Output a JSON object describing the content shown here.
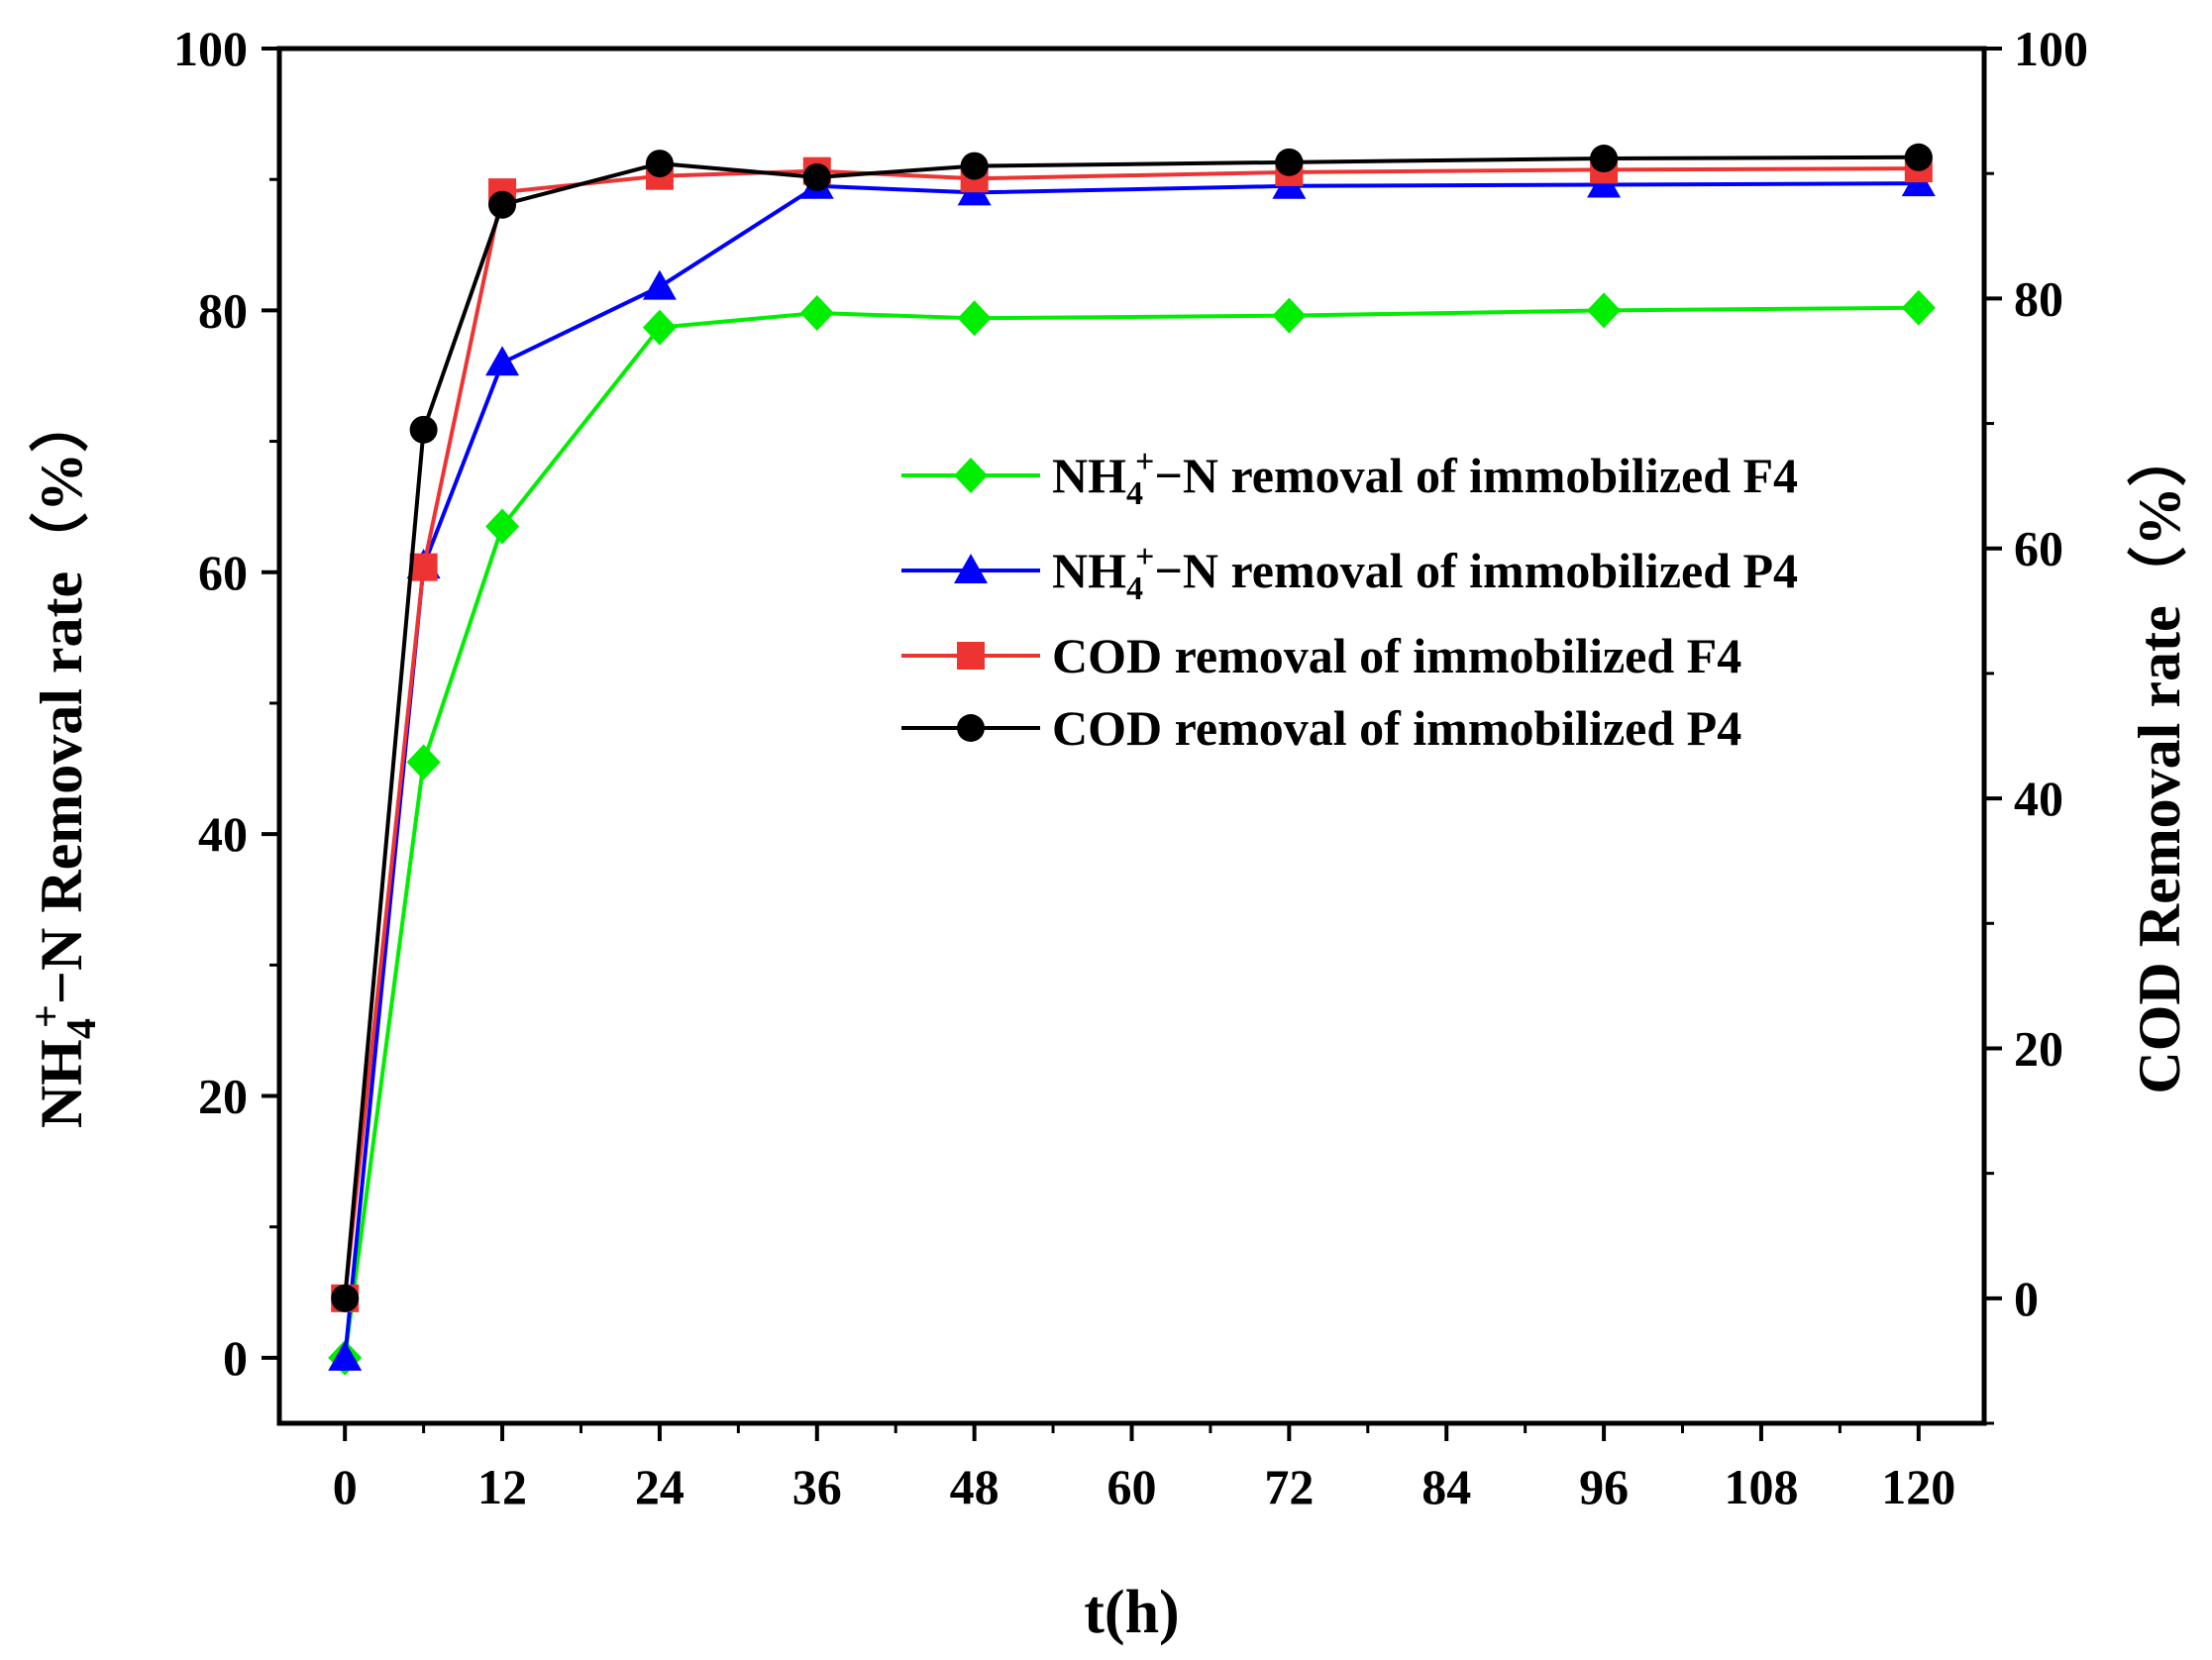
{
  "chart_data": {
    "type": "line",
    "xlabel": "t(h)",
    "ylabel_left": {
      "prefix": "NH",
      "sub": "4",
      "sup": "+",
      "suffix": "−N Removal rate（%）"
    },
    "ylabel_right": "COD Removal rate（%）",
    "xlim": [
      -5,
      125
    ],
    "ylim_left": [
      -5,
      100
    ],
    "ylim_right": [
      -10,
      100
    ],
    "x_ticks": [
      0,
      12,
      24,
      36,
      48,
      60,
      72,
      84,
      96,
      108,
      120
    ],
    "y_ticks_left": [
      0,
      20,
      40,
      60,
      80,
      100
    ],
    "y_ticks_right": [
      0,
      20,
      40,
      60,
      80,
      100
    ],
    "legend_position": "center-right",
    "series": [
      {
        "name": "NH4+-N removal of immobilized F4",
        "label": {
          "prefix": "NH",
          "sub": "4",
          "sup": "+",
          "suffix": "−N removal of immobilized F4"
        },
        "axis": "left",
        "color": "#00ee00",
        "marker": "diamond",
        "x": [
          0,
          6,
          12,
          24,
          36,
          48,
          72,
          96,
          120
        ],
        "values": [
          0,
          45.5,
          63.5,
          78.7,
          79.8,
          79.4,
          79.6,
          80.0,
          80.2
        ]
      },
      {
        "name": "NH4+-N removal of immobilized P4",
        "label": {
          "prefix": "NH",
          "sub": "4",
          "sup": "+",
          "suffix": "−N removal of immobilized P4"
        },
        "axis": "left",
        "color": "#0000ff",
        "marker": "triangle",
        "x": [
          0,
          6,
          12,
          24,
          36,
          48,
          72,
          96,
          120
        ],
        "values": [
          0,
          60.5,
          76.0,
          81.8,
          89.5,
          89.0,
          89.5,
          89.6,
          89.7
        ]
      },
      {
        "name": "COD removal of immobilized F4",
        "label": {
          "prefix": "COD removal of immobilized F4",
          "sub": "",
          "sup": "",
          "suffix": ""
        },
        "axis": "right",
        "color": "#ee3333",
        "marker": "square",
        "x": [
          0,
          6,
          12,
          24,
          36,
          48,
          72,
          96,
          120
        ],
        "values": [
          0,
          58.5,
          88.5,
          89.8,
          90.2,
          89.6,
          90.1,
          90.3,
          90.4
        ]
      },
      {
        "name": "COD removal of immobilized P4",
        "label": {
          "prefix": "COD removal of immobilized P4",
          "sub": "",
          "sup": "",
          "suffix": ""
        },
        "axis": "right",
        "color": "#000000",
        "marker": "circle",
        "x": [
          0,
          6,
          12,
          24,
          36,
          48,
          72,
          96,
          120
        ],
        "values": [
          0,
          69.5,
          87.5,
          90.8,
          89.7,
          90.6,
          90.9,
          91.2,
          91.3
        ]
      }
    ]
  }
}
